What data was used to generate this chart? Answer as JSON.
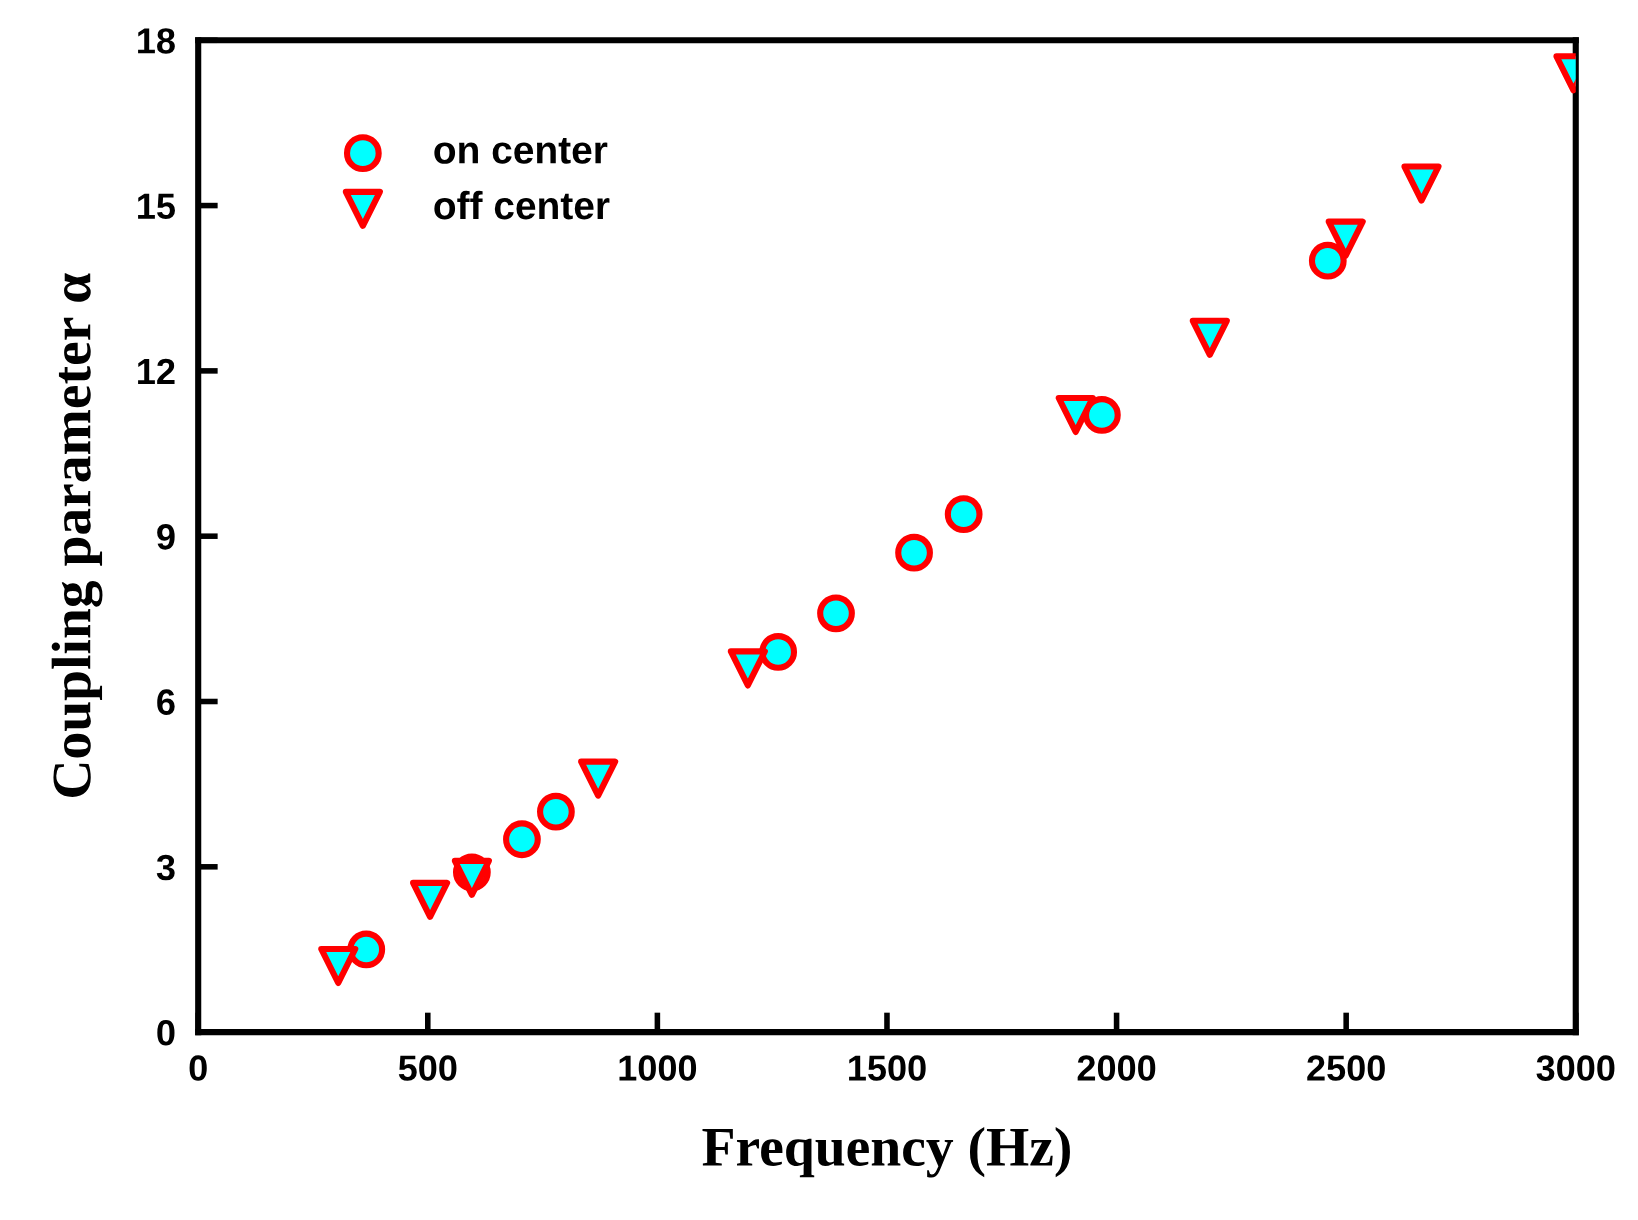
{
  "chart_data": {
    "type": "scatter",
    "xlabel": "Frequency (Hz)",
    "ylabel": "Coupling parameter α",
    "xlim": [
      0,
      3000
    ],
    "xticks": [
      0,
      500,
      1000,
      1500,
      2000,
      2500,
      3000
    ],
    "ylim": [
      0,
      18
    ],
    "yticks": [
      0,
      3,
      6,
      9,
      12,
      15,
      18
    ],
    "grid": false,
    "legend": "top left",
    "series": [
      {
        "name": "on center",
        "color": "#00ffff",
        "marker": "circle",
        "x": [
          366,
          596,
          705,
          779,
          1263,
          1389,
          1559,
          1667,
          1968,
          2460
        ],
        "values": [
          1.5,
          2.9,
          3.5,
          4.0,
          6.9,
          7.6,
          8.7,
          9.4,
          11.2,
          14.0
        ]
      },
      {
        "name": "off center",
        "color": "#00ffff",
        "marker": "triangle",
        "x": [
          305,
          505,
          596,
          871,
          1197,
          1911,
          2203,
          2499,
          2664,
          2995
        ],
        "values": [
          1.2,
          2.4,
          2.8,
          4.6,
          6.6,
          11.2,
          12.6,
          14.4,
          15.4,
          17.4
        ]
      }
    ]
  }
}
